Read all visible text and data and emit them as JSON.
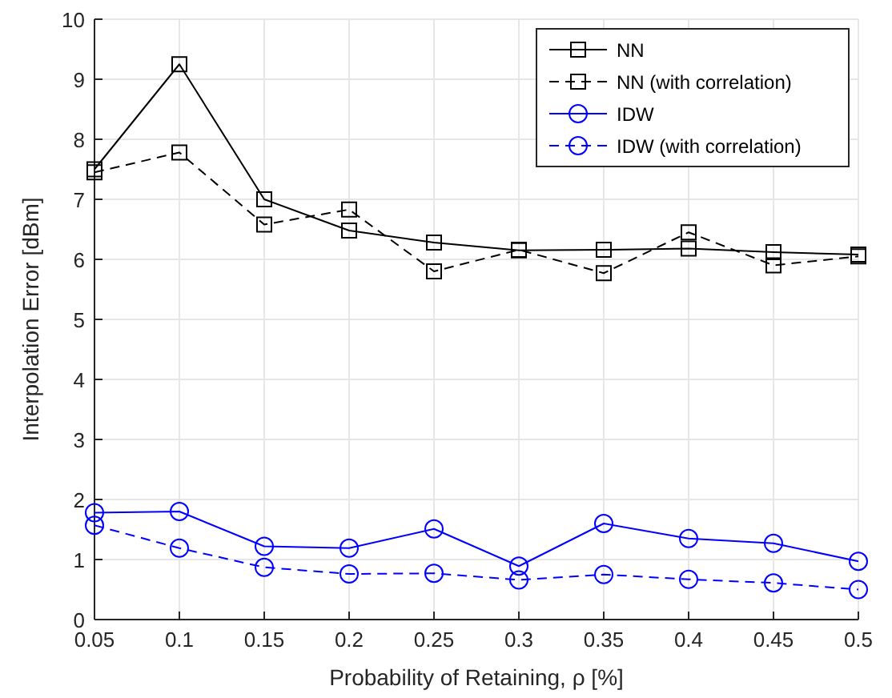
{
  "chart_data": {
    "type": "line",
    "xlabel": "Probability of Retaining, ρ [%]",
    "ylabel": "Interpolation Error [dBm]",
    "x": [
      0.05,
      0.1,
      0.15,
      0.2,
      0.25,
      0.3,
      0.35,
      0.4,
      0.45,
      0.5
    ],
    "xlim": [
      0.05,
      0.5
    ],
    "xticks": [
      0.05,
      0.1,
      0.15,
      0.2,
      0.25,
      0.3,
      0.35,
      0.4,
      0.45,
      0.5
    ],
    "ylim": [
      0,
      10
    ],
    "yticks": [
      0,
      1,
      2,
      3,
      4,
      5,
      6,
      7,
      8,
      9,
      10
    ],
    "grid": true,
    "legend": "top right",
    "series": [
      {
        "name": "NN",
        "color": "#000000",
        "marker": "square",
        "line_style": "solid",
        "values": [
          7.5,
          9.25,
          7.0,
          6.48,
          6.28,
          6.15,
          6.16,
          6.18,
          6.12,
          6.08
        ]
      },
      {
        "name": "NN (with correlation)",
        "color": "#000000",
        "marker": "square",
        "line_style": "dashed",
        "values": [
          7.45,
          7.78,
          6.58,
          6.83,
          5.8,
          6.16,
          5.77,
          6.45,
          5.9,
          6.05
        ]
      },
      {
        "name": "IDW",
        "color": "#0000ff",
        "marker": "circle",
        "line_style": "solid",
        "values": [
          1.78,
          1.8,
          1.22,
          1.19,
          1.51,
          0.89,
          1.6,
          1.35,
          1.27,
          0.97
        ]
      },
      {
        "name": "IDW (with correlation)",
        "color": "#0000ff",
        "marker": "circle",
        "line_style": "dashed",
        "values": [
          1.57,
          1.19,
          0.87,
          0.76,
          0.77,
          0.66,
          0.75,
          0.67,
          0.61,
          0.5
        ]
      }
    ]
  }
}
